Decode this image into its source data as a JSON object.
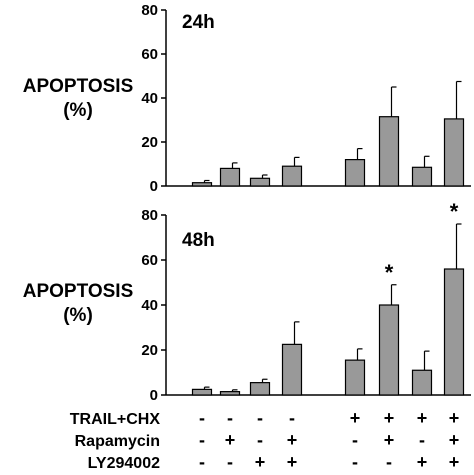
{
  "chart_data": [
    {
      "type": "bar",
      "title": "24h",
      "ylabel": "APOPTOSIS",
      "yunit": "(%)",
      "ylim": [
        0,
        80
      ],
      "yticks": [
        0,
        20,
        40,
        60,
        80
      ],
      "color": "#999999",
      "bars": [
        {
          "value": 1.5,
          "error": 1.0,
          "star": false
        },
        {
          "value": 8,
          "error": 2.5,
          "star": false
        },
        {
          "value": 3.5,
          "error": 1.5,
          "star": false
        },
        {
          "value": 9,
          "error": 4,
          "star": false
        },
        {
          "value": null,
          "error": null,
          "star": false
        },
        {
          "value": 12,
          "error": 5,
          "star": false
        },
        {
          "value": 31.5,
          "error": 13.5,
          "star": false
        },
        {
          "value": 8.5,
          "error": 5,
          "star": false
        },
        {
          "value": 30.5,
          "error": 17,
          "star": false
        }
      ]
    },
    {
      "type": "bar",
      "title": "48h",
      "ylabel": "APOPTOSIS",
      "yunit": "(%)",
      "ylim": [
        0,
        80
      ],
      "yticks": [
        0,
        20,
        40,
        60,
        80
      ],
      "color": "#999999",
      "bars": [
        {
          "value": 2.5,
          "error": 1.0,
          "star": false
        },
        {
          "value": 1.5,
          "error": 0.8,
          "star": false
        },
        {
          "value": 5.5,
          "error": 1.5,
          "star": false
        },
        {
          "value": 22.5,
          "error": 10,
          "star": false
        },
        {
          "value": null,
          "error": null,
          "star": false
        },
        {
          "value": 15.5,
          "error": 5,
          "star": false
        },
        {
          "value": 40,
          "error": 9,
          "star": true
        },
        {
          "value": 11,
          "error": 8.5,
          "star": false
        },
        {
          "value": 56,
          "error": 20,
          "star": true
        }
      ]
    }
  ],
  "star_symbol": "*",
  "conditions": [
    {
      "label": "TRAIL+CHX",
      "marks": [
        "-",
        "-",
        "-",
        "-",
        "",
        "+",
        "+",
        "+",
        "+"
      ]
    },
    {
      "label": "Rapamycin",
      "marks": [
        "-",
        "+",
        "-",
        "+",
        "",
        "-",
        "+",
        "-",
        "+"
      ]
    },
    {
      "label": "LY294002",
      "marks": [
        "-",
        "-",
        "+",
        "+",
        "",
        "-",
        "-",
        "+",
        "+"
      ]
    }
  ]
}
